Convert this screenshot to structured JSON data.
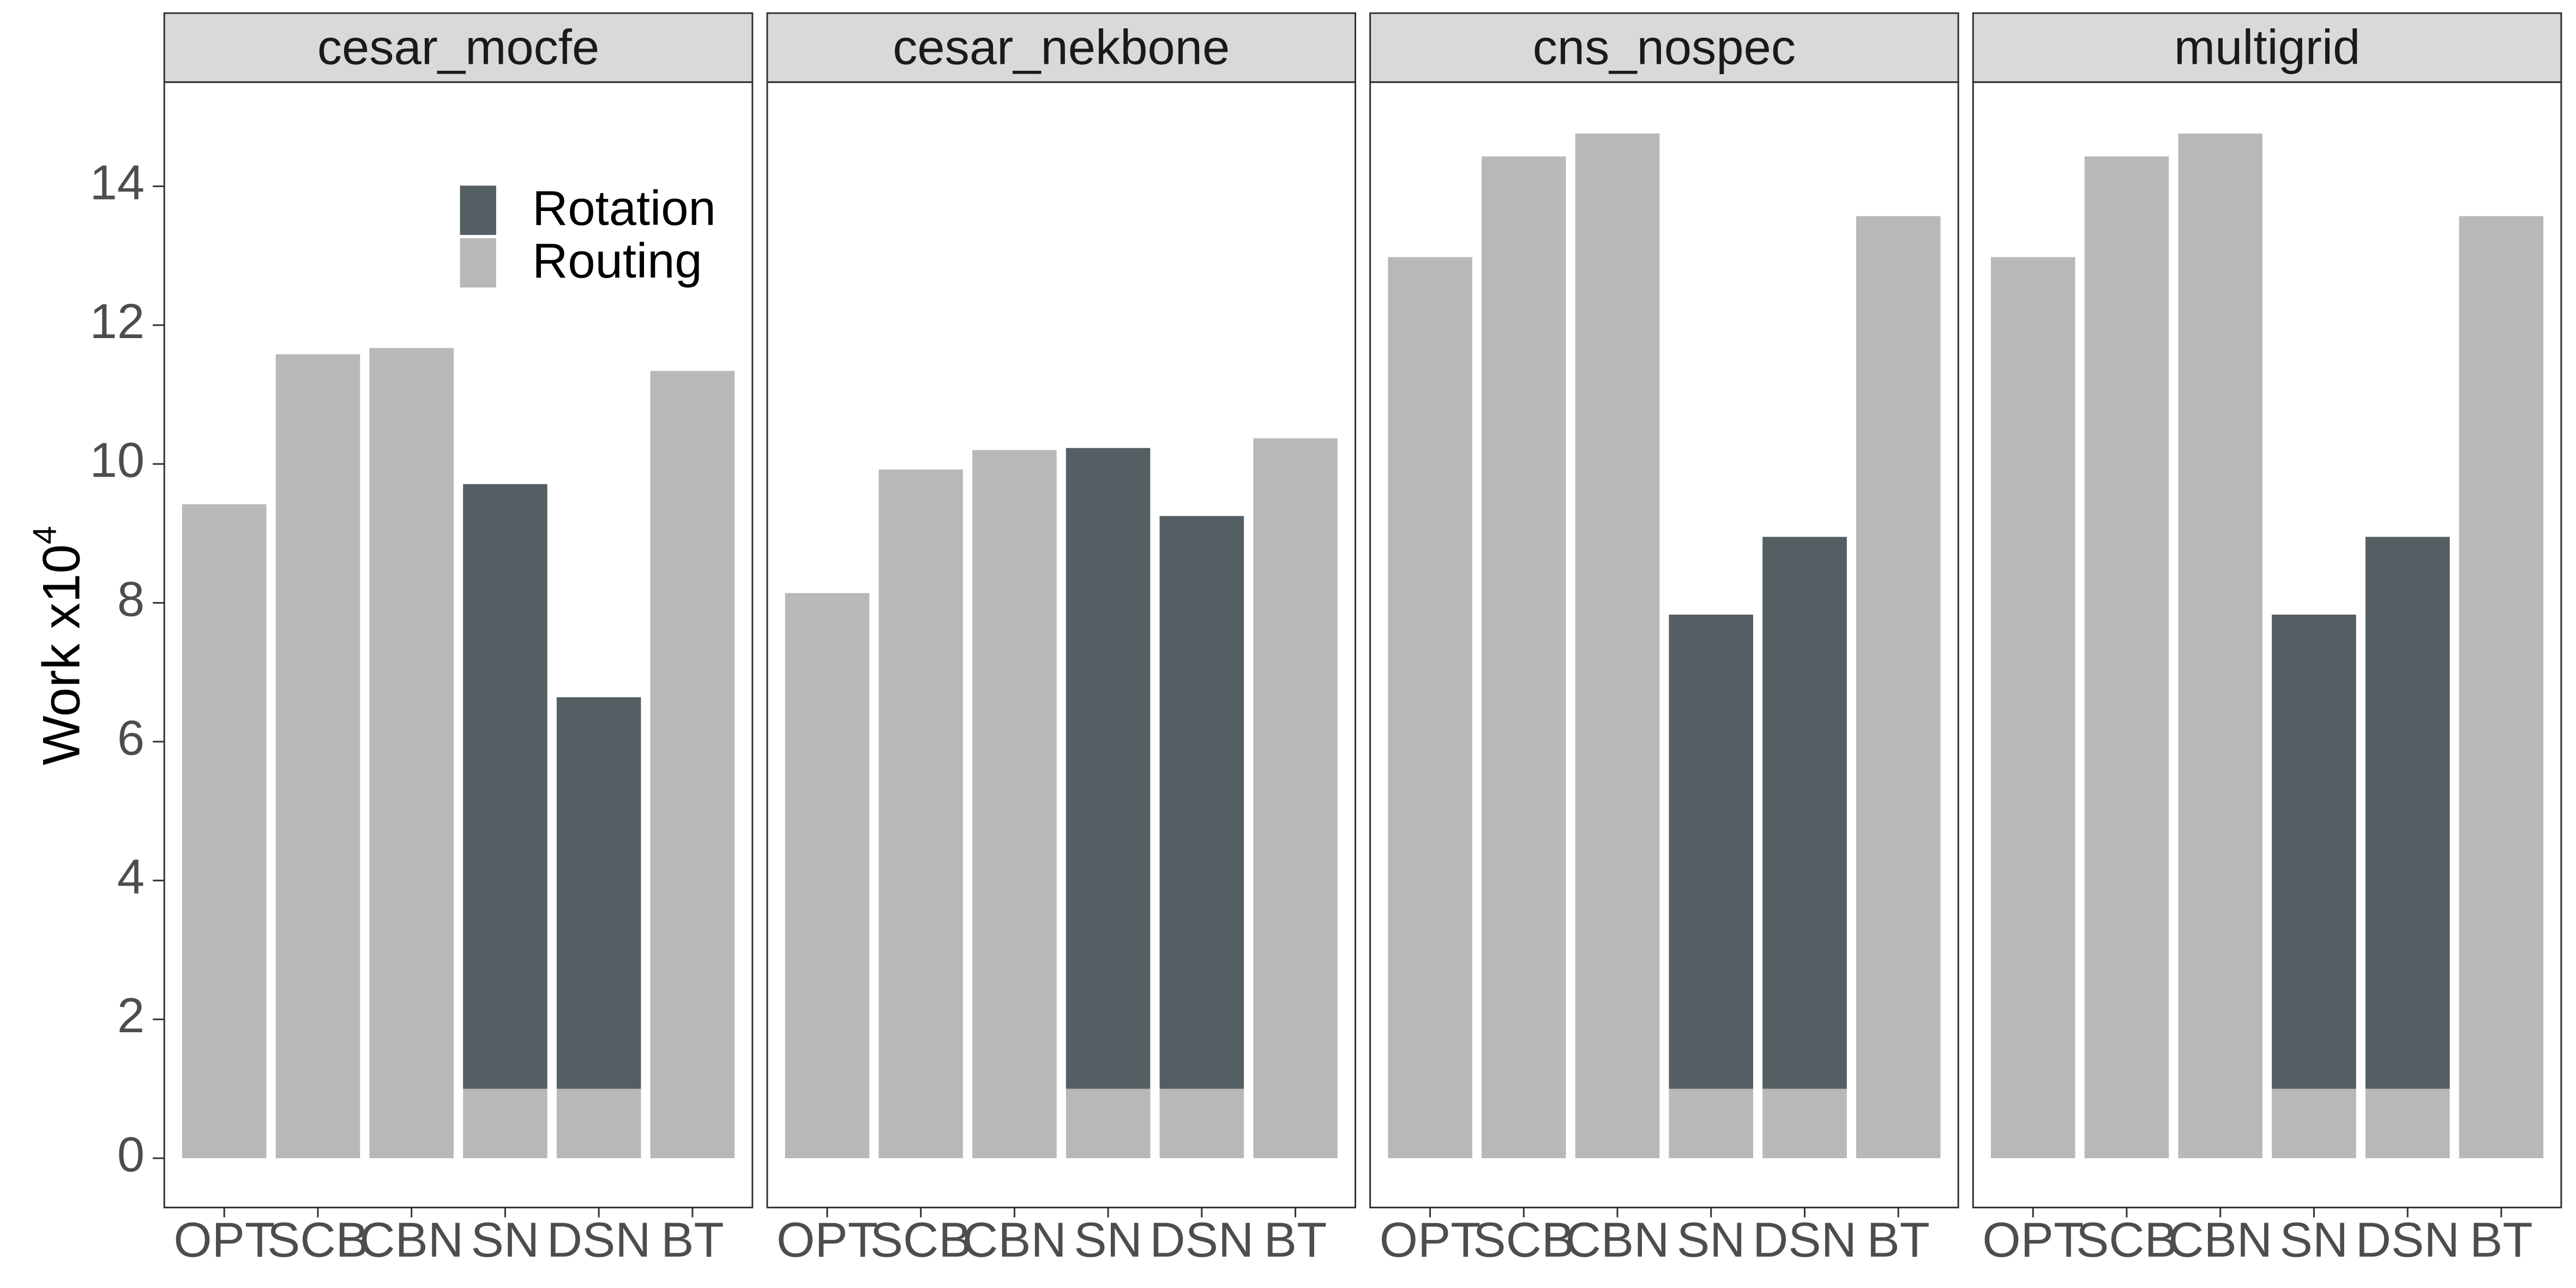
{
  "chart_data": [
    {
      "type": "bar",
      "stacked": true,
      "title": "cesar_mocfe",
      "y_label": "Work x10",
      "y_label_exponent": "4",
      "categories": [
        "OPT",
        "SCB",
        "CBN",
        "SN",
        "DSN",
        "BT"
      ],
      "series": [
        {
          "name": "Routing",
          "color": "#b8b8b8",
          "values": [
            9.42,
            11.58,
            11.67,
            1,
            1,
            11.34
          ]
        },
        {
          "name": "Rotation",
          "color": "#555e63",
          "values": [
            null,
            null,
            null,
            8.71,
            5.64,
            null
          ]
        }
      ],
      "ylim": [
        -0.71,
        15.5
      ],
      "yticks": [
        0,
        2,
        4,
        6,
        8,
        10,
        12,
        14
      ],
      "legend": "top-right"
    },
    {
      "type": "bar",
      "stacked": true,
      "title": "cesar_nekbone",
      "categories": [
        "OPT",
        "SCB",
        "CBN",
        "SN",
        "DSN",
        "BT"
      ],
      "series": [
        {
          "name": "Routing",
          "color": "#b8b8b8",
          "values": [
            8.14,
            9.92,
            10.2,
            1,
            1,
            10.37
          ]
        },
        {
          "name": "Rotation",
          "color": "#555e63",
          "values": [
            null,
            null,
            null,
            9.23,
            8.25,
            null
          ]
        }
      ],
      "ylim": [
        -0.71,
        15.5
      ]
    },
    {
      "type": "bar",
      "stacked": true,
      "title": "cns_nospec",
      "categories": [
        "OPT",
        "SCB",
        "CBN",
        "SN",
        "DSN",
        "BT"
      ],
      "series": [
        {
          "name": "Routing",
          "color": "#b8b8b8",
          "values": [
            12.98,
            14.43,
            14.76,
            1,
            1,
            13.57
          ]
        },
        {
          "name": "Rotation",
          "color": "#555e63",
          "values": [
            null,
            null,
            null,
            6.83,
            7.95,
            null
          ]
        }
      ],
      "ylim": [
        -0.71,
        15.5
      ]
    },
    {
      "type": "bar",
      "stacked": true,
      "title": "multigrid",
      "categories": [
        "OPT",
        "SCB",
        "CBN",
        "SN",
        "DSN",
        "BT"
      ],
      "series": [
        {
          "name": "Routing",
          "color": "#b8b8b8",
          "values": [
            12.98,
            14.43,
            14.76,
            1,
            1,
            13.57
          ]
        },
        {
          "name": "Rotation",
          "color": "#555e63",
          "values": [
            null,
            null,
            null,
            6.83,
            7.95,
            null
          ]
        }
      ],
      "ylim": [
        -0.71,
        15.5
      ]
    }
  ]
}
